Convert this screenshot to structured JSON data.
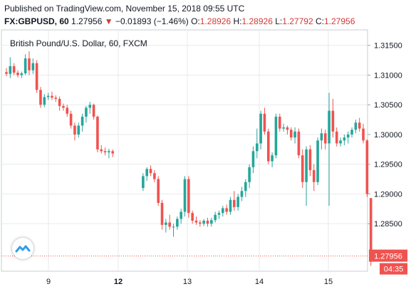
{
  "header": {
    "published": "Published on TradingView.com, November 15, 2018 09:55 UTC",
    "symbol": "FX:GBPUSD, 60",
    "last": "1.27956",
    "change": "−0.01893 (−1.46%)",
    "o_label": "O:",
    "o": "1.28926",
    "h_label": "H:",
    "h": "1.28926",
    "l_label": "L:",
    "l": "1.27792",
    "c_label": "C:",
    "c": "1.27956"
  },
  "colors": {
    "up": "#26a69a",
    "down": "#ef5350",
    "grid": "#e8eaed",
    "price_tag": "#ef5350"
  },
  "chart_data": {
    "type": "candlestick",
    "title": "British Pound/U.S. Dollar, 60, FXCM",
    "x_ticks": [
      "9",
      "12",
      "13",
      "14",
      "15"
    ],
    "y_ticks": [
      "1.31500",
      "1.31000",
      "1.30500",
      "1.30000",
      "1.29500",
      "1.29000",
      "1.28500"
    ],
    "ylim": [
      1.277,
      1.3176
    ],
    "last_price_label": "1.27956",
    "countdown_label": "04:35",
    "last_price": 1.27956,
    "grid": true,
    "candles": [
      [
        1.3105,
        1.3112,
        1.3098,
        1.3102
      ],
      [
        1.3102,
        1.313,
        1.3095,
        1.3115
      ],
      [
        1.3115,
        1.312,
        1.31,
        1.3104
      ],
      [
        1.3104,
        1.3108,
        1.3096,
        1.31
      ],
      [
        1.31,
        1.3106,
        1.3095,
        1.3103
      ],
      [
        1.3103,
        1.3135,
        1.31,
        1.3128
      ],
      [
        1.3128,
        1.314,
        1.31,
        1.3108
      ],
      [
        1.3108,
        1.3128,
        1.3102,
        1.312
      ],
      [
        1.312,
        1.3125,
        1.307,
        1.3075
      ],
      [
        1.3075,
        1.308,
        1.3045,
        1.305
      ],
      [
        1.305,
        1.3068,
        1.3046,
        1.3063
      ],
      [
        1.3063,
        1.307,
        1.3058,
        1.3065
      ],
      [
        1.3065,
        1.3072,
        1.3058,
        1.3062
      ],
      [
        1.3062,
        1.3066,
        1.3055,
        1.306
      ],
      [
        1.306,
        1.3064,
        1.304,
        1.3048
      ],
      [
        1.3048,
        1.3052,
        1.304,
        1.3045
      ],
      [
        1.3045,
        1.305,
        1.303,
        1.3035
      ],
      [
        1.3035,
        1.304,
        1.301,
        1.3015
      ],
      [
        1.3015,
        1.302,
        1.299,
        1.3
      ],
      [
        1.3,
        1.302,
        1.2995,
        1.3015
      ],
      [
        1.3015,
        1.3035,
        1.3005,
        1.303
      ],
      [
        1.303,
        1.3048,
        1.302,
        1.3045
      ],
      [
        1.3045,
        1.3055,
        1.3035,
        1.305
      ],
      [
        1.305,
        1.3052,
        1.3025,
        1.303
      ],
      [
        1.303,
        1.3032,
        1.297,
        1.2975
      ],
      [
        1.2975,
        1.2982,
        1.2968,
        1.2972
      ],
      [
        1.2972,
        1.2978,
        1.2965,
        1.297
      ],
      [
        1.297,
        1.2976,
        1.296,
        1.2972
      ],
      [
        1.2972,
        1.2975,
        1.2962,
        1.2968
      ],
      [
        1.291,
        1.2935,
        1.2905,
        1.293
      ],
      [
        1.293,
        1.2945,
        1.2922,
        1.2942
      ],
      [
        1.2942,
        1.2948,
        1.293,
        1.2935
      ],
      [
        1.2935,
        1.294,
        1.292,
        1.2925
      ],
      [
        1.2925,
        1.293,
        1.288,
        1.2885
      ],
      [
        1.2885,
        1.289,
        1.284,
        1.2848
      ],
      [
        1.2848,
        1.2858,
        1.2835,
        1.2852
      ],
      [
        1.2852,
        1.2865,
        1.284,
        1.2845
      ],
      [
        1.2845,
        1.285,
        1.2828,
        1.2845
      ],
      [
        1.2845,
        1.2862,
        1.284,
        1.2858
      ],
      [
        1.2858,
        1.2875,
        1.285,
        1.287
      ],
      [
        1.287,
        1.293,
        1.2862,
        1.2925
      ],
      [
        1.2925,
        1.293,
        1.286,
        1.2868
      ],
      [
        1.2868,
        1.2872,
        1.285,
        1.2855
      ],
      [
        1.2855,
        1.2862,
        1.2848,
        1.2852
      ],
      [
        1.2852,
        1.2856,
        1.2845,
        1.285
      ],
      [
        1.285,
        1.2858,
        1.2846,
        1.2855
      ],
      [
        1.2855,
        1.286,
        1.2845,
        1.285
      ],
      [
        1.285,
        1.286,
        1.2845,
        1.2856
      ],
      [
        1.2856,
        1.287,
        1.2852,
        1.2865
      ],
      [
        1.2865,
        1.2872,
        1.2858,
        1.2868
      ],
      [
        1.2868,
        1.288,
        1.2862,
        1.2876
      ],
      [
        1.2876,
        1.2882,
        1.2865,
        1.287
      ],
      [
        1.287,
        1.2895,
        1.2865,
        1.289
      ],
      [
        1.289,
        1.2905,
        1.2872,
        1.2878
      ],
      [
        1.2878,
        1.29,
        1.2872,
        1.2895
      ],
      [
        1.2895,
        1.2912,
        1.2888,
        1.2905
      ],
      [
        1.2905,
        1.2925,
        1.2895,
        1.292
      ],
      [
        1.292,
        1.295,
        1.291,
        1.2945
      ],
      [
        1.2945,
        1.298,
        1.2935,
        1.2972
      ],
      [
        1.2972,
        1.301,
        1.296,
        1.2985
      ],
      [
        1.2985,
        1.304,
        1.2975,
        1.3035
      ],
      [
        1.3035,
        1.3045,
        1.3,
        1.3005
      ],
      [
        1.3005,
        1.301,
        1.295,
        1.2955
      ],
      [
        1.2955,
        1.297,
        1.2945,
        1.2965
      ],
      [
        1.2965,
        1.3035,
        1.296,
        1.303
      ],
      [
        1.303,
        1.3035,
        1.3005,
        1.301
      ],
      [
        1.301,
        1.3018,
        1.3005,
        1.3012
      ],
      [
        1.3012,
        1.3015,
        1.3,
        1.3008
      ],
      [
        1.3008,
        1.3012,
        1.299,
        1.2995
      ],
      [
        1.2995,
        1.3012,
        1.2985,
        1.3005
      ],
      [
        1.3005,
        1.301,
        1.296,
        1.2965
      ],
      [
        1.2965,
        1.2975,
        1.291,
        1.292
      ],
      [
        1.292,
        1.298,
        1.288,
        1.2975
      ],
      [
        1.2975,
        1.2982,
        1.293,
        1.294
      ],
      [
        1.294,
        1.295,
        1.2905,
        1.292
      ],
      [
        1.292,
        1.2995,
        1.2915,
        1.299
      ],
      [
        1.299,
        1.301,
        1.2975,
        1.3002
      ],
      [
        1.3002,
        1.3008,
        1.2975,
        1.2985
      ],
      [
        1.2985,
        1.307,
        1.288,
        1.304
      ],
      [
        1.304,
        1.306,
        1.2995,
        1.3005
      ],
      [
        1.3005,
        1.3012,
        1.298,
        1.2985
      ],
      [
        1.2985,
        1.2995,
        1.298,
        1.299
      ],
      [
        1.299,
        1.3,
        1.2982,
        1.2995
      ],
      [
        1.2995,
        1.3005,
        1.2985,
        1.3
      ],
      [
        1.3,
        1.3012,
        1.2995,
        1.3008
      ],
      [
        1.3008,
        1.3025,
        1.3002,
        1.302
      ],
      [
        1.302,
        1.3028,
        1.3005,
        1.301
      ],
      [
        1.301,
        1.3018,
        1.2985,
        1.299
      ],
      [
        1.299,
        1.2992,
        1.2895,
        1.29
      ],
      [
        1.2893,
        1.2893,
        1.2779,
        1.2796
      ]
    ]
  }
}
